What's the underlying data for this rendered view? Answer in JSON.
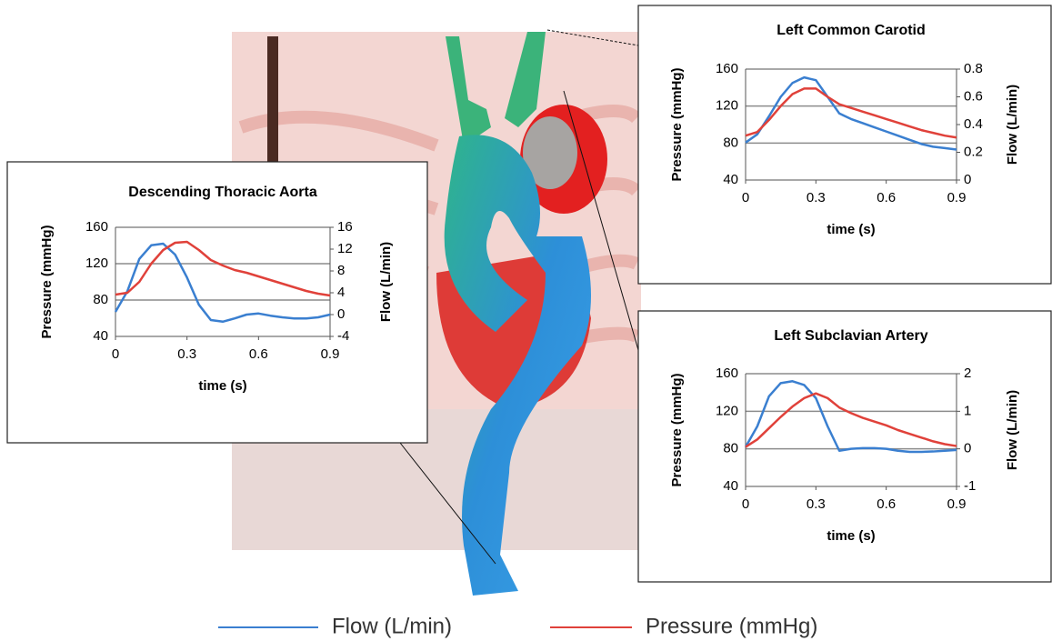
{
  "chart_data": [
    {
      "type": "line",
      "title": "Descending Thoracic Aorta",
      "x_label": "time (s)",
      "y_label": "Pressure (mmHg)",
      "y2_label": "Flow (L/min)",
      "x": [
        0,
        0.05,
        0.1,
        0.15,
        0.2,
        0.25,
        0.3,
        0.35,
        0.4,
        0.45,
        0.5,
        0.55,
        0.6,
        0.65,
        0.7,
        0.75,
        0.8,
        0.85,
        0.9
      ],
      "xlim": [
        0,
        0.9
      ],
      "xticks": [
        0,
        0.3,
        0.6,
        0.9
      ],
      "ylim": [
        40,
        160
      ],
      "yticks": [
        40,
        80,
        120,
        160
      ],
      "y2lim": [
        -4,
        16
      ],
      "y2ticks": [
        -4,
        0,
        4,
        8,
        12,
        16
      ],
      "grid": true,
      "series": [
        {
          "name": "Flow (L/min)",
          "color": "#3a7fd0",
          "axis": "y2",
          "values": [
            0.5,
            4.3,
            10.2,
            12.7,
            13,
            11,
            6.8,
            1.8,
            -1,
            -1.3,
            -0.7,
            0,
            0.2,
            -0.2,
            -0.5,
            -0.7,
            -0.7,
            -0.5,
            0
          ]
        },
        {
          "name": "Pressure (mmHg)",
          "color": "#e0413a",
          "values": [
            86,
            88,
            100,
            120,
            135,
            143,
            144,
            135,
            124,
            118,
            113,
            110,
            106,
            102,
            98,
            94,
            90,
            87,
            85
          ]
        }
      ]
    },
    {
      "type": "line",
      "title": "Left Common Carotid",
      "x_label": "time (s)",
      "y_label": "Pressure (mmHg)",
      "y2_label": "Flow (L/min)",
      "x": [
        0,
        0.05,
        0.1,
        0.15,
        0.2,
        0.25,
        0.3,
        0.35,
        0.4,
        0.45,
        0.5,
        0.55,
        0.6,
        0.65,
        0.7,
        0.75,
        0.8,
        0.85,
        0.9
      ],
      "xlim": [
        0,
        0.9
      ],
      "xticks": [
        0,
        0.3,
        0.6,
        0.9
      ],
      "ylim": [
        40,
        160
      ],
      "yticks": [
        40,
        80,
        120,
        160
      ],
      "y2lim": [
        0,
        0.8
      ],
      "y2ticks": [
        0,
        0.2,
        0.4,
        0.6,
        0.8
      ],
      "grid": true,
      "series": [
        {
          "color": "#3a7fd0",
          "axis": "y2",
          "values": [
            0.27,
            0.33,
            0.46,
            0.6,
            0.7,
            0.74,
            0.72,
            0.6,
            0.48,
            0.44,
            0.41,
            0.38,
            0.35,
            0.32,
            0.29,
            0.26,
            0.24,
            0.23,
            0.22
          ]
        },
        {
          "color": "#e0413a",
          "values": [
            88,
            92,
            105,
            120,
            133,
            139,
            139,
            130,
            122,
            118,
            114,
            110,
            106,
            102,
            98,
            94,
            91,
            88,
            86
          ]
        }
      ]
    },
    {
      "type": "line",
      "title": "Left Subclavian Artery",
      "x_label": "time (s)",
      "y_label": "Pressure (mmHg)",
      "y2_label": "Flow (L/min)",
      "x": [
        0,
        0.05,
        0.1,
        0.15,
        0.2,
        0.25,
        0.3,
        0.35,
        0.4,
        0.45,
        0.5,
        0.55,
        0.6,
        0.65,
        0.7,
        0.75,
        0.8,
        0.85,
        0.9
      ],
      "xlim": [
        0,
        0.9
      ],
      "xticks": [
        0,
        0.3,
        0.6,
        0.9
      ],
      "ylim": [
        40,
        160
      ],
      "yticks": [
        40,
        80,
        120,
        160
      ],
      "y2lim": [
        -1,
        2
      ],
      "y2ticks": [
        -1,
        0,
        1,
        2
      ],
      "grid": true,
      "series": [
        {
          "color": "#3a7fd0",
          "axis": "y2",
          "values": [
            0.05,
            0.6,
            1.4,
            1.75,
            1.8,
            1.7,
            1.35,
            0.6,
            -0.05,
            0,
            0.02,
            0.02,
            0,
            -0.05,
            -0.08,
            -0.08,
            -0.07,
            -0.05,
            -0.03
          ]
        },
        {
          "color": "#e0413a",
          "values": [
            82,
            90,
            102,
            114,
            125,
            134,
            139,
            134,
            124,
            118,
            113,
            109,
            105,
            100,
            96,
            92,
            88,
            85,
            83
          ]
        }
      ]
    }
  ]
}
